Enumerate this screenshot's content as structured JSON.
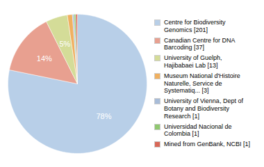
{
  "chart_data": {
    "type": "pie",
    "categories": [
      "Centre for Biodiversity\nGenomics [201]",
      "Canadian Centre for DNA\nBarcoding [37]",
      "University of Guelph,\nHajibabaei Lab [13]",
      "Museum National d'Histoire\nNaturelle, Service de\nSystematiq... [3]",
      "University of Vienna, Dept of\nBotany and Biodiversity\nResearch [1]",
      "Universidad Nacional de\nColombia [1]",
      "Mined from GenBank, NCBI [1]"
    ],
    "values": [
      201,
      37,
      13,
      3,
      1,
      1,
      1
    ],
    "colors": [
      "#b8cfe8",
      "#e8a090",
      "#d4dc98",
      "#f0b060",
      "#a8bcd8",
      "#90c870",
      "#d86858"
    ],
    "data_labels": true,
    "value_labels": [
      "78%",
      "14%",
      "5%",
      null,
      null,
      null,
      null
    ],
    "legend": "right"
  }
}
